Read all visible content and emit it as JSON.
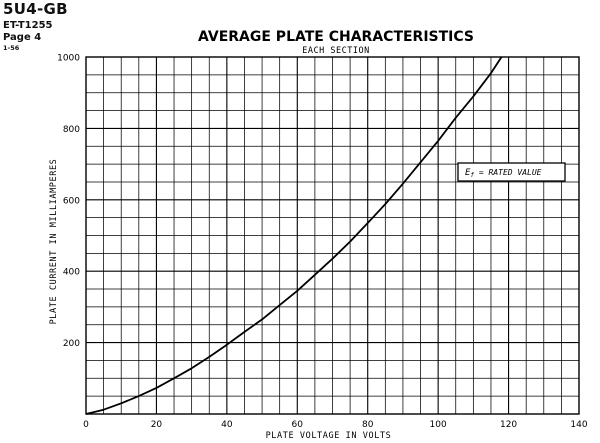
{
  "header": {
    "tube_type": "5U4-GB",
    "doc_id": "ET-T1255",
    "page": "Page 4",
    "date": "1-56"
  },
  "chart_data": {
    "type": "line",
    "title": "AVERAGE PLATE CHARACTERISTICS",
    "subtitle": "EACH SECTION",
    "xlabel": "PLATE VOLTAGE IN VOLTS",
    "ylabel": "PLATE CURRENT IN MILLIAMPERES",
    "xlim": [
      0,
      140
    ],
    "ylim": [
      0,
      1000
    ],
    "x_ticks": [
      0,
      20,
      40,
      60,
      80,
      100,
      120,
      140
    ],
    "y_ticks": [
      200,
      400,
      600,
      800,
      1000
    ],
    "grid": true,
    "x_minor_step": 5,
    "y_minor_step": 50,
    "annotation": "E_f = RATED VALUE",
    "annotation_italic_parts": [
      "E",
      "f"
    ],
    "annotation_rest": " = RATED VALUE",
    "line_color": "#000000",
    "series": [
      {
        "x": [
          0,
          5,
          10,
          15,
          20,
          25,
          30,
          35,
          40,
          45,
          50,
          55,
          60,
          65,
          70,
          75,
          80,
          85,
          90,
          95,
          100,
          105,
          110,
          115,
          118
        ],
        "y": [
          0,
          12,
          30,
          50,
          73,
          100,
          128,
          160,
          194,
          230,
          265,
          305,
          345,
          390,
          435,
          483,
          535,
          588,
          645,
          705,
          765,
          830,
          890,
          955,
          1000
        ]
      }
    ]
  }
}
